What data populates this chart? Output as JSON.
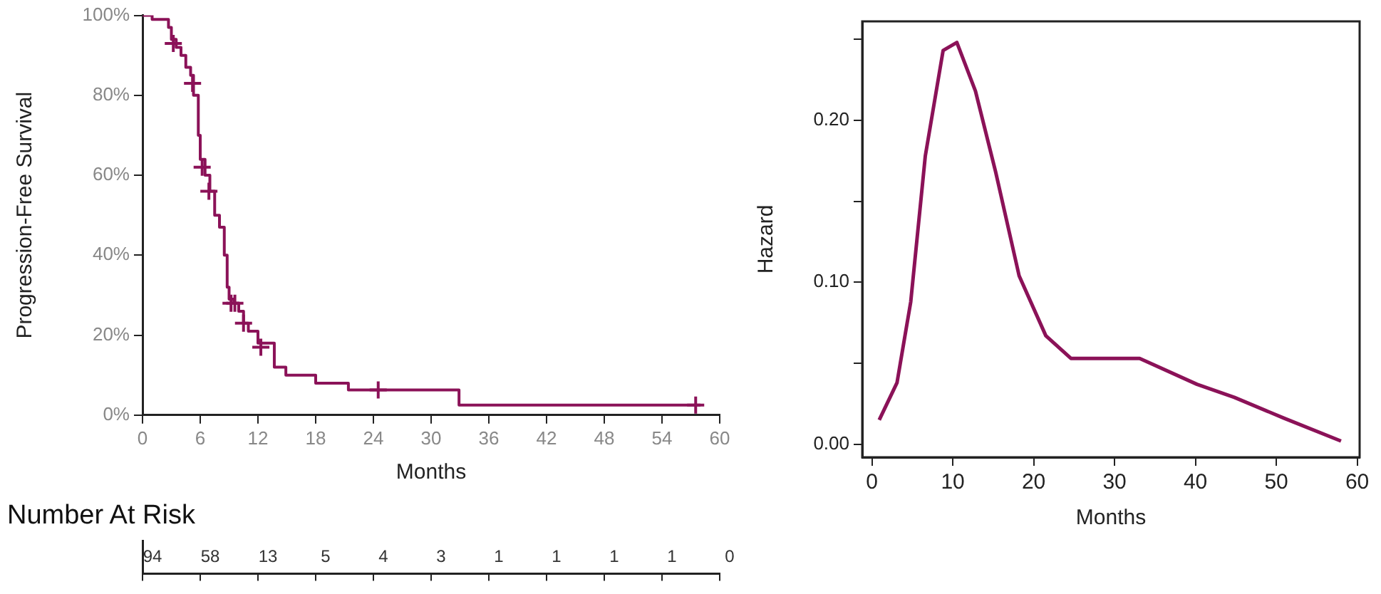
{
  "chart_data": [
    {
      "type": "step",
      "xlabel": "Months",
      "ylabel": "Progression-Free Survival",
      "xlim": [
        0,
        60
      ],
      "xticks": [
        0,
        6,
        12,
        18,
        24,
        30,
        36,
        42,
        48,
        54,
        60
      ],
      "ylim": [
        0,
        100
      ],
      "yticks": [
        {
          "value": 0,
          "label": "0%"
        },
        {
          "value": 20,
          "label": "20%"
        },
        {
          "value": 40,
          "label": "40%"
        },
        {
          "value": 60,
          "label": "60%"
        },
        {
          "value": 80,
          "label": "80%"
        },
        {
          "value": 100,
          "label": "100%"
        }
      ],
      "grid": false,
      "legend": false,
      "series": [
        {
          "type": "step",
          "color": "#8b1258",
          "x": [
            0,
            1,
            2.7,
            3,
            3.5,
            4,
            4.5,
            5,
            5.3,
            5.8,
            6,
            6.5,
            7,
            7.5,
            8,
            8.5,
            8.8,
            9,
            9.5,
            10,
            10.5,
            11,
            12,
            13.7,
            14.9,
            18,
            21.4,
            32.9,
            58
          ],
          "values": [
            100,
            99,
            97,
            94,
            92,
            90,
            87,
            85,
            80,
            70,
            64,
            60,
            56,
            50,
            47,
            40,
            32,
            29,
            28,
            26,
            23,
            21,
            18,
            12,
            10,
            8,
            6.3,
            2.5,
            2.5
          ]
        },
        {
          "type": "scatter",
          "marker": "cross",
          "color": "#8b1258",
          "x": [
            3.2,
            5.2,
            6.2,
            6.9,
            9.2,
            9.6,
            10.5,
            12.3,
            24.5,
            57.5
          ],
          "values": [
            93,
            83,
            62,
            56,
            28,
            28,
            23,
            17,
            6.3,
            2.5
          ]
        }
      ]
    },
    {
      "type": "line",
      "xlabel": "Months",
      "ylabel": "Hazard",
      "xlim": [
        -1.2,
        60.3
      ],
      "xticks": [
        0,
        10,
        20,
        30,
        40,
        50,
        60
      ],
      "ylim": [
        -0.008,
        0.261
      ],
      "yticks": [
        {
          "value": 0,
          "label": "0.00"
        },
        {
          "value": 0.05,
          "label": null
        },
        {
          "value": 0.1,
          "label": "0.10"
        },
        {
          "value": 0.15,
          "label": null
        },
        {
          "value": 0.2,
          "label": "0.20"
        },
        {
          "value": 0.25,
          "label": null
        }
      ],
      "grid": false,
      "legend": false,
      "marker": "none",
      "series": [
        {
          "color": "#8b1258",
          "x": [
            0.9,
            3.1,
            4.8,
            6.6,
            8.8,
            10.5,
            12.8,
            15.3,
            18.2,
            21.5,
            24.6,
            33.1,
            40.2,
            44.8,
            51,
            58
          ],
          "values": [
            0.015,
            0.038,
            0.088,
            0.178,
            0.243,
            0.248,
            0.218,
            0.168,
            0.104,
            0.067,
            0.053,
            0.053,
            0.037,
            0.029,
            0.016,
            0.002
          ]
        }
      ]
    },
    {
      "type": "other",
      "title": "Number At Risk",
      "data_labels": true,
      "categories": [
        null,
        null,
        null,
        null,
        null,
        null,
        null,
        null,
        null,
        null,
        null
      ],
      "values": [
        94,
        58,
        13,
        5,
        4,
        3,
        1,
        1,
        1,
        1,
        0
      ]
    }
  ]
}
